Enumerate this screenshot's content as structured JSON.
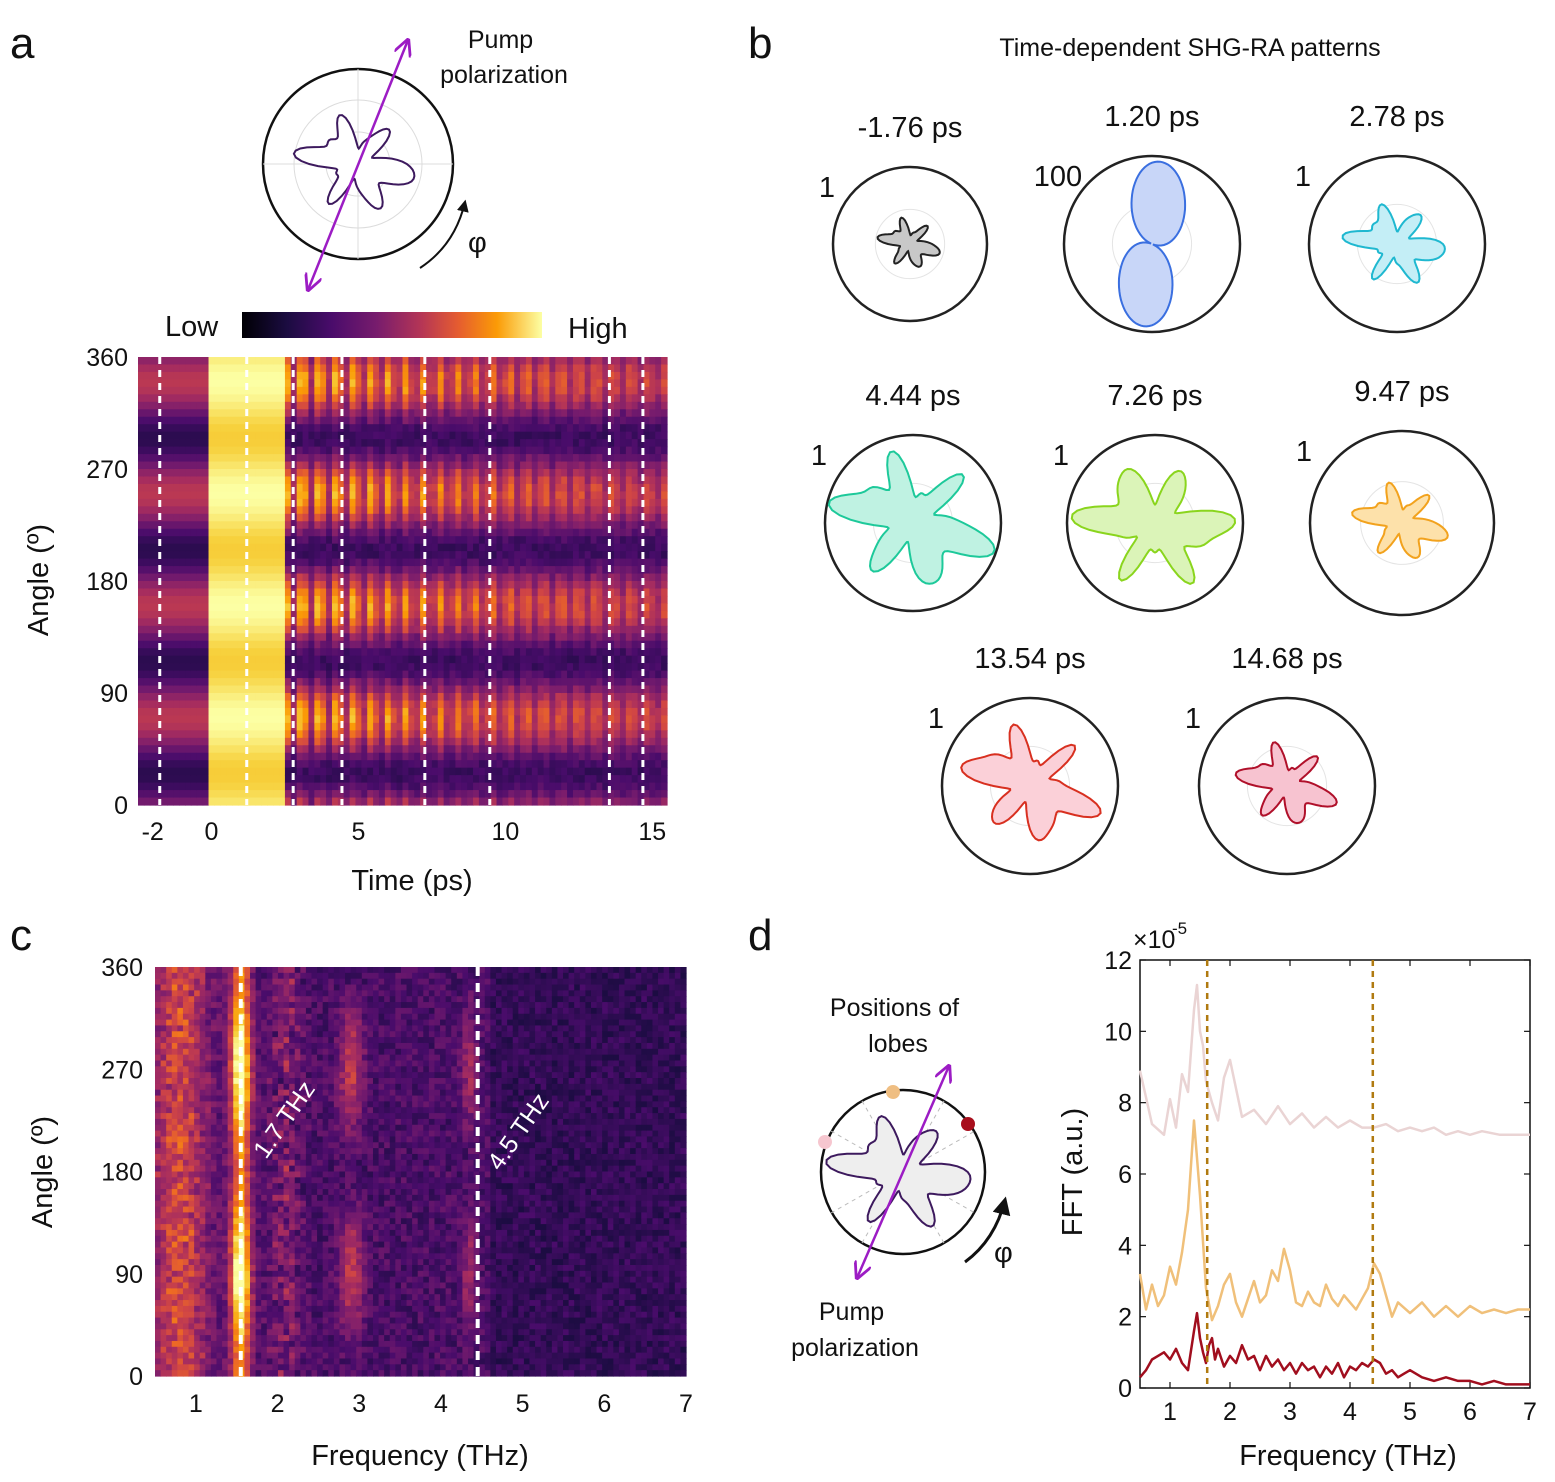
{
  "panels": {
    "a": {
      "letter": "a",
      "diagram_label": "Pump\npolarization",
      "phi": "φ",
      "colorbar": {
        "low": "Low",
        "high": "High"
      },
      "chart_data": {
        "type": "heatmap",
        "xlabel": "Time (ps)",
        "ylabel": "Angle (º)",
        "xlim": [
          -2.5,
          15.5
        ],
        "ylim": [
          0,
          360
        ],
        "xticks": [
          "-2",
          "0",
          "5",
          "10",
          "15"
        ],
        "xtick_values": [
          -2,
          0,
          5,
          10,
          15
        ],
        "yticks": [
          "0",
          "90",
          "180",
          "270",
          "360"
        ],
        "ytick_values": [
          0,
          90,
          180,
          270,
          360
        ],
        "dashed_times": [
          -1.76,
          1.2,
          2.78,
          4.44,
          7.26,
          9.47,
          13.54,
          14.68
        ]
      }
    },
    "b": {
      "letter": "b",
      "title": "Time-dependent SHG-RA patterns",
      "patterns": [
        {
          "label": "-1.76 ps",
          "scale": "1",
          "color": "#222222",
          "fill": "#c8c8c8"
        },
        {
          "label": "1.20 ps",
          "scale": "100",
          "color": "#3a6fe0",
          "fill": "#c8d6f8"
        },
        {
          "label": "2.78 ps",
          "scale": "1",
          "color": "#1fb8d0",
          "fill": "#c4eef6"
        },
        {
          "label": "4.44 ps",
          "scale": "1",
          "color": "#1dc99a",
          "fill": "#bff2e2"
        },
        {
          "label": "7.26 ps",
          "scale": "1",
          "color": "#8ad51d",
          "fill": "#dbf4b8"
        },
        {
          "label": "9.47 ps",
          "scale": "1",
          "color": "#f2a21d",
          "fill": "#fde1aa"
        },
        {
          "label": "13.54 ps",
          "scale": "1",
          "color": "#d83020",
          "fill": "#fbd0d8"
        },
        {
          "label": "14.68 ps",
          "scale": "1",
          "color": "#b0102a",
          "fill": "#f7c3d0"
        }
      ]
    },
    "c": {
      "letter": "c",
      "annotations": [
        "1.7 THz",
        "4.5 THz"
      ],
      "chart_data": {
        "type": "heatmap",
        "xlabel": "Frequency (THz)",
        "ylabel": "Angle (º)",
        "xlim": [
          0.5,
          7
        ],
        "ylim": [
          0,
          360
        ],
        "xticks": [
          "1",
          "2",
          "3",
          "4",
          "5",
          "6",
          "7"
        ],
        "xtick_values": [
          1,
          2,
          3,
          4,
          5,
          6,
          7
        ],
        "yticks": [
          "0",
          "90",
          "180",
          "270",
          "360"
        ],
        "ytick_values": [
          0,
          90,
          180,
          270,
          360
        ],
        "dashed_frequencies": [
          1.55,
          4.45
        ]
      }
    },
    "d": {
      "letter": "d",
      "lobes_label": "Positions of\nlobes",
      "pump_label": "Pump\npolarization",
      "phi": "φ",
      "lobe_colors": [
        "#f6c6cf",
        "#efbe82",
        "#a80e1c"
      ],
      "chart_data": {
        "type": "line",
        "xlabel": "Frequency (THz)",
        "ylabel": "FFT (a.u.)",
        "multiplier": "×10",
        "exponent": "-5",
        "xlim": [
          0.5,
          7
        ],
        "ylim": [
          0,
          12
        ],
        "xticks": [
          "1",
          "2",
          "3",
          "4",
          "5",
          "6",
          "7"
        ],
        "xtick_values": [
          1,
          2,
          3,
          4,
          5,
          6,
          7
        ],
        "yticks": [
          "0",
          "2",
          "4",
          "6",
          "8",
          "10",
          "12"
        ],
        "ytick_values": [
          0,
          2,
          4,
          6,
          8,
          10,
          12
        ],
        "dashed_frequencies": [
          1.62,
          4.38
        ],
        "series": [
          {
            "color": "#ead4d4",
            "x": [
              0.5,
              0.7,
              0.9,
              1.0,
              1.1,
              1.2,
              1.3,
              1.4,
              1.45,
              1.5,
              1.55,
              1.6,
              1.7,
              1.8,
              1.9,
              2.0,
              2.1,
              2.2,
              2.4,
              2.6,
              2.8,
              3.0,
              3.2,
              3.4,
              3.6,
              3.8,
              4.0,
              4.2,
              4.4,
              4.6,
              4.8,
              5.0,
              5.2,
              5.4,
              5.6,
              5.8,
              6.0,
              6.2,
              6.5,
              7.0
            ],
            "y": [
              8.9,
              7.4,
              7.1,
              8.1,
              7.3,
              8.8,
              8.3,
              10.6,
              11.3,
              10.0,
              9.6,
              8.6,
              8.0,
              7.5,
              8.7,
              9.2,
              8.4,
              7.6,
              7.8,
              7.4,
              7.9,
              7.4,
              7.7,
              7.3,
              7.6,
              7.3,
              7.5,
              7.3,
              7.3,
              7.4,
              7.2,
              7.3,
              7.2,
              7.3,
              7.1,
              7.2,
              7.1,
              7.2,
              7.1,
              7.1
            ]
          },
          {
            "color": "#f0c07a",
            "x": [
              0.5,
              0.6,
              0.7,
              0.8,
              0.9,
              1.0,
              1.1,
              1.2,
              1.3,
              1.4,
              1.5,
              1.6,
              1.7,
              1.8,
              1.9,
              2.0,
              2.1,
              2.2,
              2.3,
              2.4,
              2.5,
              2.6,
              2.7,
              2.8,
              2.9,
              3.0,
              3.1,
              3.2,
              3.3,
              3.4,
              3.5,
              3.6,
              3.7,
              3.8,
              3.9,
              4.0,
              4.1,
              4.2,
              4.3,
              4.4,
              4.5,
              4.6,
              4.7,
              4.8,
              5.0,
              5.2,
              5.4,
              5.6,
              5.8,
              6.0,
              6.2,
              6.4,
              6.6,
              6.8,
              7.0
            ],
            "y": [
              3.2,
              2.2,
              2.9,
              2.3,
              2.6,
              3.4,
              2.9,
              3.8,
              5.0,
              7.5,
              5.4,
              2.8,
              1.9,
              2.3,
              2.9,
              3.2,
              2.4,
              2.0,
              2.5,
              3.0,
              2.4,
              2.6,
              3.3,
              3.0,
              3.9,
              3.3,
              2.4,
              2.3,
              2.7,
              2.4,
              2.3,
              2.9,
              2.5,
              2.3,
              2.6,
              2.4,
              2.2,
              2.5,
              2.8,
              3.5,
              3.2,
              2.6,
              2.0,
              2.4,
              2.1,
              2.4,
              2.0,
              2.3,
              2.0,
              2.3,
              2.1,
              2.2,
              2.1,
              2.2,
              2.2
            ]
          },
          {
            "color": "#a10e1e",
            "x": [
              0.5,
              0.6,
              0.7,
              0.8,
              0.9,
              1.0,
              1.1,
              1.2,
              1.3,
              1.4,
              1.45,
              1.5,
              1.55,
              1.6,
              1.65,
              1.7,
              1.75,
              1.8,
              1.9,
              2.0,
              2.1,
              2.2,
              2.3,
              2.4,
              2.5,
              2.6,
              2.7,
              2.8,
              2.9,
              3.0,
              3.1,
              3.2,
              3.3,
              3.4,
              3.5,
              3.6,
              3.7,
              3.8,
              3.9,
              4.0,
              4.1,
              4.2,
              4.3,
              4.4,
              4.5,
              4.6,
              4.7,
              4.8,
              4.9,
              5.0,
              5.2,
              5.4,
              5.6,
              5.8,
              6.0,
              6.2,
              6.4,
              6.6,
              6.8,
              7.0
            ],
            "y": [
              0.3,
              0.5,
              0.8,
              0.9,
              1.0,
              0.8,
              1.1,
              0.7,
              0.5,
              1.6,
              2.1,
              1.4,
              1.0,
              0.7,
              1.2,
              1.4,
              0.8,
              1.1,
              0.6,
              0.9,
              0.7,
              1.2,
              0.8,
              0.9,
              0.5,
              0.9,
              0.6,
              0.8,
              0.5,
              0.7,
              0.4,
              0.7,
              0.5,
              0.6,
              0.3,
              0.6,
              0.4,
              0.7,
              0.3,
              0.6,
              0.5,
              0.7,
              0.6,
              0.8,
              0.7,
              0.4,
              0.5,
              0.3,
              0.4,
              0.5,
              0.3,
              0.2,
              0.3,
              0.2,
              0.2,
              0.1,
              0.2,
              0.1,
              0.1,
              0.1
            ]
          }
        ]
      }
    }
  }
}
